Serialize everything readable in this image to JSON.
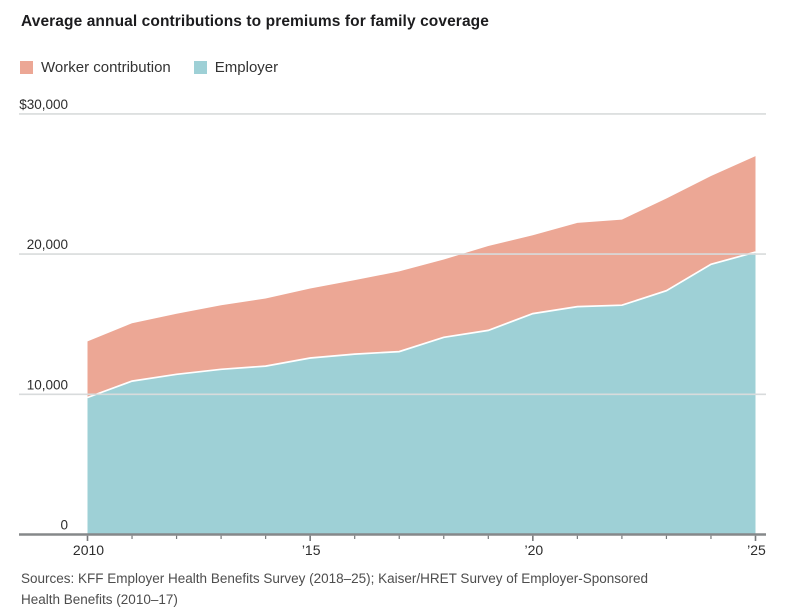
{
  "title": "Average annual contributions to premiums for family coverage",
  "legend": [
    {
      "label": "Worker contribution",
      "color": "#eca795"
    },
    {
      "label": "Employer",
      "color": "#9ed0d6"
    }
  ],
  "chart_data": {
    "type": "area",
    "stacked": true,
    "title": "Average annual contributions to premiums for family coverage",
    "x": [
      2010,
      2011,
      2012,
      2013,
      2014,
      2015,
      2016,
      2017,
      2018,
      2019,
      2020,
      2021,
      2022,
      2023,
      2024,
      2025
    ],
    "series": [
      {
        "name": "Employer",
        "color": "#9ed0d6",
        "values": [
          9773,
          10944,
          11429,
          11786,
          12011,
          12591,
          12865,
          13049,
          14069,
          14561,
          15754,
          16253,
          16357,
          17393,
          19276,
          20143
        ]
      },
      {
        "name": "Worker contribution",
        "color": "#eca795",
        "values": [
          3997,
          4129,
          4316,
          4565,
          4823,
          4955,
          5277,
          5714,
          5547,
          6015,
          5588,
          5969,
          6106,
          6575,
          6296,
          6850
        ]
      }
    ],
    "ylim": [
      0,
      30000
    ],
    "yticks": [
      {
        "value": 0,
        "label": "0"
      },
      {
        "value": 10000,
        "label": "10,000"
      },
      {
        "value": 20000,
        "label": "20,000"
      },
      {
        "value": 30000,
        "label": "$30,000"
      }
    ],
    "xticks": [
      {
        "value": 2010,
        "label": "2010"
      },
      {
        "value": 2015,
        "label": "’15"
      },
      {
        "value": 2020,
        "label": "’20"
      },
      {
        "value": 2025,
        "label": "’25"
      }
    ],
    "grid": "horizontal",
    "legend_position": "top-left",
    "colors": {
      "gridline": "#d8dbdc",
      "axis": "#85888a",
      "tick": "#77797b",
      "tick_label": "#2d2d2d",
      "separator": "#ffffff"
    }
  },
  "source": {
    "line1": "Sources: KFF Employer Health Benefits Survey (2018–25); Kaiser/HRET Survey of Employer-Sponsored",
    "line2": "Health Benefits (2010–17)"
  }
}
